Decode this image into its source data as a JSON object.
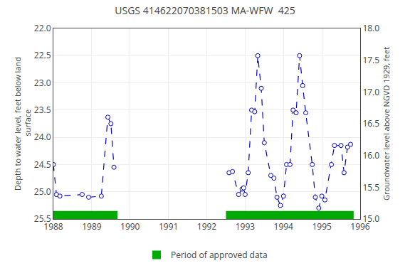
{
  "chart_data": {
    "type": "line",
    "title": "USGS 414622070381503 MA-WFW  425",
    "y_label": "Depth to water level, feet below land\n surface",
    "y2_label": "Groundwater level above NGVD 1929, feet",
    "x": [
      1988.0,
      1988.08,
      1988.17,
      1988.75,
      1988.92,
      1989.25,
      1989.42,
      1989.5,
      1989.58,
      null,
      1992.58,
      1992.67,
      1992.83,
      1992.92,
      1992.96,
      1993.0,
      1993.08,
      1993.17,
      1993.25,
      1993.33,
      1993.42,
      1993.5,
      1993.67,
      1993.75,
      1993.83,
      1993.92,
      1994.0,
      1994.08,
      1994.17,
      1994.25,
      1994.33,
      1994.42,
      1994.5,
      1994.58,
      1994.75,
      1994.83,
      1994.92,
      1995.0,
      1995.08,
      1995.25,
      1995.33,
      1995.5,
      1995.58,
      1995.67,
      1995.75
    ],
    "values": [
      24.5,
      25.05,
      25.08,
      25.05,
      25.1,
      25.08,
      23.63,
      23.75,
      24.55,
      null,
      24.65,
      24.63,
      25.05,
      24.95,
      24.93,
      25.05,
      24.65,
      23.5,
      23.53,
      22.5,
      23.1,
      24.1,
      24.7,
      24.75,
      25.1,
      25.25,
      25.08,
      24.5,
      24.5,
      23.5,
      23.55,
      22.5,
      23.05,
      23.55,
      24.5,
      25.1,
      25.3,
      25.08,
      25.15,
      24.5,
      24.15,
      24.15,
      24.65,
      24.18,
      24.13
    ],
    "color": "#0000cc",
    "marker": "open_circle",
    "line_style": "dashed",
    "xlim": [
      1988.0,
      1996.0
    ],
    "xticks": [
      1988,
      1989,
      1990,
      1991,
      1992,
      1993,
      1994,
      1995,
      1996
    ],
    "ylim": [
      25.5,
      22.0
    ],
    "yticks": [
      {
        "value": 22.0,
        "label": "22.0"
      },
      22.5,
      {
        "value": 23.0,
        "label": "23.0"
      },
      23.5,
      {
        "value": 24.0,
        "label": "24.0"
      },
      24.5,
      {
        "value": 25.0,
        "label": "25.0"
      },
      25.5
    ],
    "y2lim": [
      15.0,
      18.0
    ],
    "y2ticks": [
      {
        "value": 15.0,
        "label": "15.0"
      },
      15.5,
      {
        "value": 16.0,
        "label": "16.0"
      },
      16.5,
      {
        "value": 17.0,
        "label": "17.0"
      },
      17.5,
      {
        "value": 18.0,
        "label": "18.0"
      }
    ],
    "grid": true,
    "approved_periods": {
      "name": "Period of approved data",
      "color": "#00aa00",
      "periods": [
        [
          1988.0,
          1989.67
        ],
        [
          1992.5,
          1995.83
        ]
      ]
    }
  }
}
